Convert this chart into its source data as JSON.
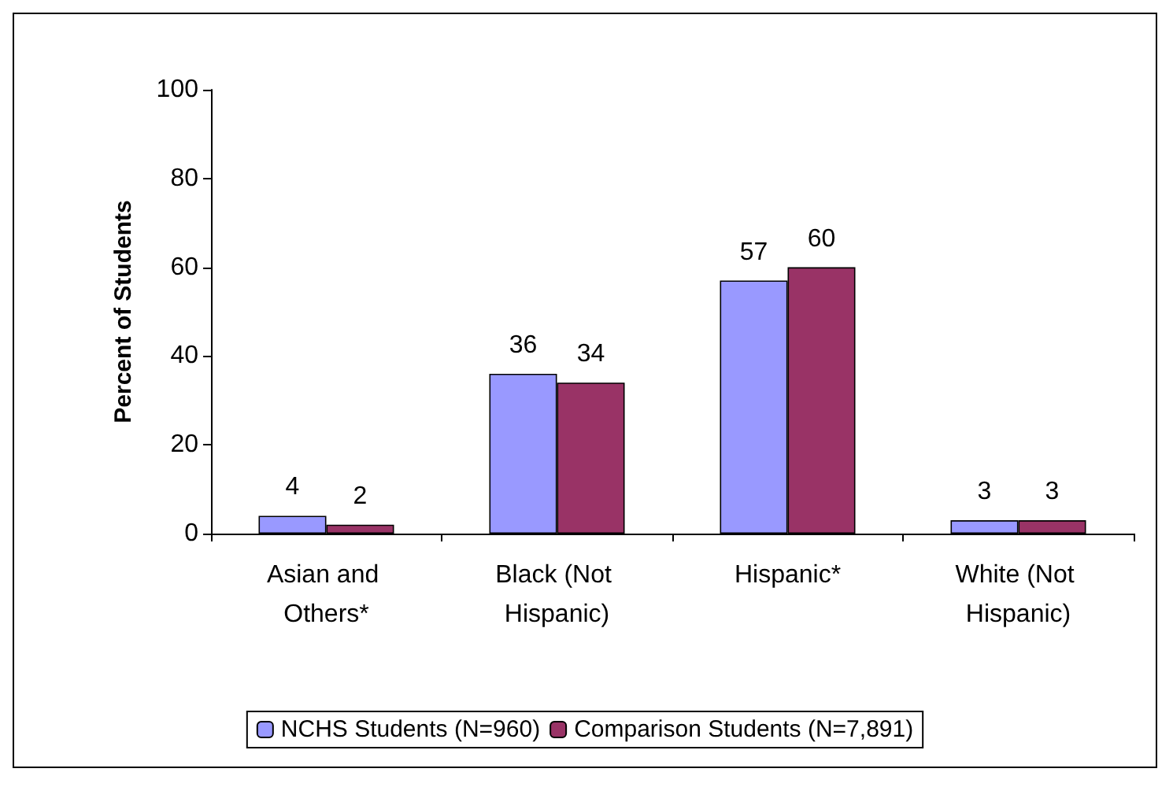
{
  "chart_data": {
    "type": "bar",
    "ylabel": "Percent of Students",
    "categories": [
      "Asian and Others*",
      "Black (Not Hispanic)",
      "Hispanic*",
      "White (Not Hispanic)"
    ],
    "series": [
      {
        "name": "NCHS Students (N=960)",
        "color": "#9999ff",
        "values": [
          4,
          36,
          57,
          3
        ]
      },
      {
        "name": "Comparison Students (N=7,891)",
        "color": "#993366",
        "values": [
          2,
          34,
          60,
          3
        ]
      }
    ],
    "ylim": [
      0,
      100
    ],
    "yticks": [
      0,
      20,
      40,
      60,
      80,
      100
    ],
    "data_labels": true,
    "legend": "bottom",
    "grid": false
  }
}
